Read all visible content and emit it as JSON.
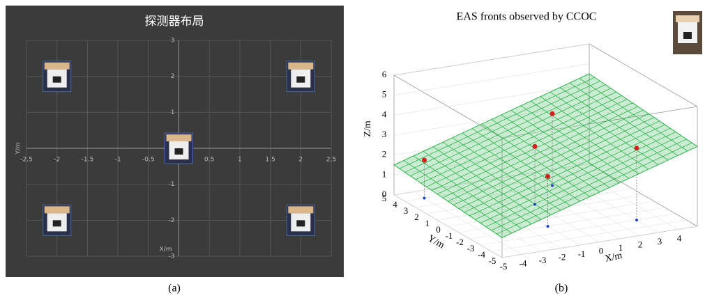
{
  "chart_data": [
    {
      "type": "scatter",
      "title": "探测器布局",
      "x_label": "X/m",
      "y_label": "Y/m",
      "x": [
        -2,
        2,
        0,
        -2,
        2
      ],
      "values": [
        2,
        2,
        0,
        -2,
        -2
      ],
      "xlim": [
        -2.5,
        2.5
      ],
      "ylim": [
        -3,
        3
      ],
      "xticks": [
        -2.5,
        -2,
        -1.5,
        -1,
        -0.5,
        0.5,
        1,
        1.5,
        2,
        2.5
      ],
      "yticks": [
        -3,
        -2,
        -1,
        1,
        2,
        3
      ],
      "grid": true,
      "caption": "(a)"
    },
    {
      "type": "scatter3d",
      "title": "EAS fronts observed by CCOC",
      "x_label": "X/m",
      "y_label": "Y/m",
      "z_label": "Z/m",
      "series": [
        {
          "color": "#1f3fbf",
          "x": [
            -4,
            -1,
            0,
            2,
            3
          ],
          "y": [
            4,
            -2,
            1,
            3,
            -3
          ],
          "z": [
            0,
            0,
            0,
            0,
            0
          ]
        },
        {
          "color": "#d42020",
          "x": [
            -4,
            -1,
            0,
            2,
            3
          ],
          "y": [
            4,
            -2,
            1,
            3,
            -3
          ],
          "z": [
            1.9,
            2.5,
            2.9,
            3.6,
            3.6
          ]
        }
      ],
      "surface": {
        "color": "#2db34a",
        "z_corners": [
          1,
          4,
          4.5,
          1.5
        ]
      },
      "xlim": [
        -5,
        5
      ],
      "ylim": [
        -5,
        5
      ],
      "zlim": [
        0,
        6
      ],
      "xticks": [
        -5,
        -4,
        -3,
        -2,
        -1,
        0,
        1,
        2,
        3,
        4
      ],
      "yticks": [
        -5,
        -4,
        -3,
        -2,
        -1,
        0,
        1,
        2,
        3,
        4,
        5
      ],
      "zticks": [
        0,
        1,
        2,
        3,
        4,
        5,
        6
      ],
      "caption": "(b)"
    }
  ]
}
